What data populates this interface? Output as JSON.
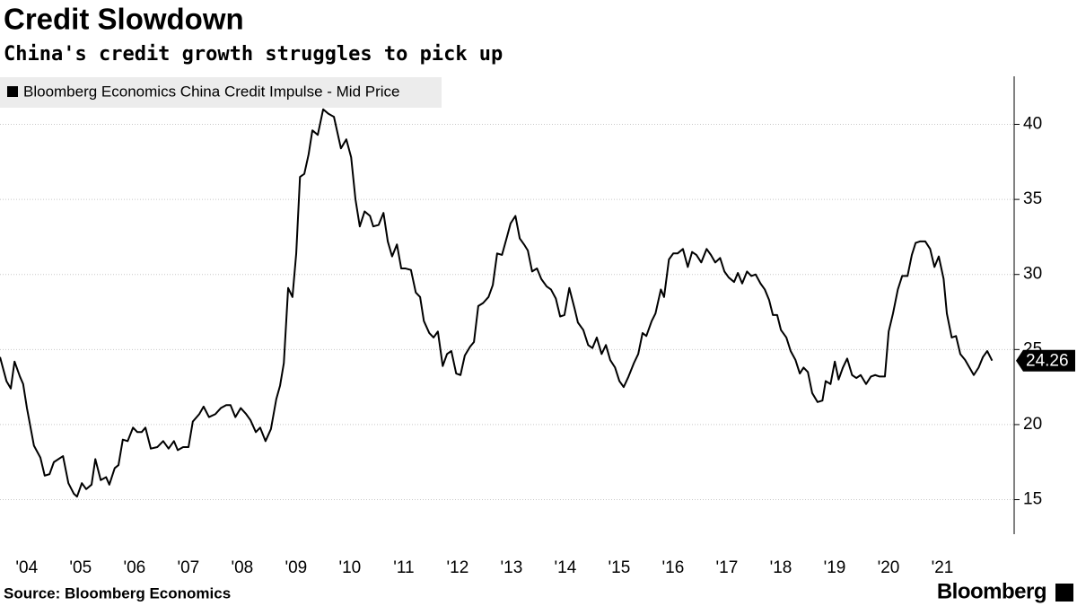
{
  "chart_data": {
    "type": "line",
    "title": "Credit Slowdown",
    "subtitle": "China's credit growth struggles to pick up",
    "source": "Source: Bloomberg Economics",
    "brand": "Bloomberg",
    "legend": "top-left",
    "grid": true,
    "x": [
      2003.67,
      2003.79,
      2003.87,
      2003.94,
      2004.04,
      2004.1,
      2004.17,
      2004.3,
      2004.42,
      2004.5,
      2004.59,
      2004.67,
      2004.84,
      2004.94,
      2005.04,
      2005.1,
      2005.19,
      2005.27,
      2005.37,
      2005.44,
      2005.54,
      2005.64,
      2005.7,
      2005.8,
      2005.87,
      2005.95,
      2006.04,
      2006.14,
      2006.22,
      2006.3,
      2006.37,
      2006.47,
      2006.59,
      2006.7,
      2006.8,
      2006.9,
      2006.97,
      2007.07,
      2007.17,
      2007.25,
      2007.37,
      2007.45,
      2007.55,
      2007.67,
      2007.77,
      2007.87,
      2007.95,
      2008.04,
      2008.14,
      2008.24,
      2008.32,
      2008.42,
      2008.5,
      2008.6,
      2008.7,
      2008.8,
      2008.87,
      2008.94,
      2009.02,
      2009.1,
      2009.17,
      2009.24,
      2009.32,
      2009.4,
      2009.47,
      2009.57,
      2009.67,
      2009.77,
      2009.87,
      2010.0,
      2010.1,
      2010.19,
      2010.27,
      2010.35,
      2010.44,
      2010.54,
      2010.6,
      2010.7,
      2010.79,
      2010.87,
      2010.95,
      2011.04,
      2011.12,
      2011.2,
      2011.3,
      2011.39,
      2011.47,
      2011.54,
      2011.64,
      2011.72,
      2011.8,
      2011.89,
      2011.97,
      2012.05,
      2012.14,
      2012.22,
      2012.3,
      2012.4,
      2012.47,
      2012.55,
      2012.64,
      2012.74,
      2012.82,
      2012.9,
      2012.99,
      2013.09,
      2013.15,
      2013.24,
      2013.32,
      2013.4,
      2013.47,
      2013.55,
      2013.64,
      2013.72,
      2013.82,
      2013.9,
      2013.99,
      2014.07,
      2014.15,
      2014.24,
      2014.34,
      2014.4,
      2014.5,
      2014.59,
      2014.67,
      2014.75,
      2014.84,
      2014.92,
      2015.0,
      2015.09,
      2015.17,
      2015.25,
      2015.34,
      2015.44,
      2015.52,
      2015.6,
      2015.67,
      2015.77,
      2015.84,
      2015.94,
      2016.0,
      2016.09,
      2016.17,
      2016.25,
      2016.35,
      2016.44,
      2016.52,
      2016.6,
      2016.69,
      2016.79,
      2016.87,
      2016.95,
      2017.04,
      2017.12,
      2017.2,
      2017.3,
      2017.37,
      2017.45,
      2017.54,
      2017.62,
      2017.7,
      2017.79,
      2017.87,
      2017.95,
      2018.02,
      2018.1,
      2018.17,
      2018.27,
      2018.35,
      2018.44,
      2018.52,
      2018.59,
      2018.67,
      2018.75,
      2018.85,
      2018.94,
      2019.0,
      2019.09,
      2019.17,
      2019.24,
      2019.32,
      2019.4,
      2019.49,
      2019.57,
      2019.65,
      2019.75,
      2019.84,
      2019.92,
      2020.0,
      2020.1,
      2020.17,
      2020.25,
      2020.34,
      2020.42,
      2020.52,
      2020.6,
      2020.67,
      2020.75,
      2020.85,
      2020.94,
      2021.02,
      2021.1,
      2021.19,
      2021.25,
      2021.34,
      2021.42,
      2021.5,
      2021.59,
      2021.67,
      2021.75,
      2021.84,
      2021.92,
      2022.0,
      2022.09
    ],
    "series": [
      {
        "name": "Bloomberg Economics China Credit Impulse - Mid Price",
        "color": "#000000",
        "values": [
          24.5,
          22.9,
          22.4,
          24.2,
          23.2,
          22.7,
          21.1,
          18.6,
          17.8,
          16.6,
          16.7,
          17.5,
          17.9,
          16.1,
          15.4,
          15.2,
          16.1,
          15.7,
          16.0,
          17.7,
          16.3,
          16.5,
          16.0,
          17.1,
          17.3,
          19.0,
          18.9,
          19.8,
          19.5,
          19.5,
          19.8,
          18.4,
          18.5,
          18.9,
          18.4,
          18.9,
          18.3,
          18.5,
          18.5,
          20.2,
          20.7,
          21.2,
          20.5,
          20.7,
          21.1,
          21.3,
          21.3,
          20.5,
          21.1,
          20.7,
          20.3,
          19.5,
          19.8,
          18.9,
          19.7,
          21.7,
          22.6,
          24.1,
          29.1,
          28.5,
          31.4,
          36.5,
          36.7,
          38.0,
          39.6,
          39.3,
          41.0,
          40.7,
          40.5,
          38.4,
          39.0,
          37.8,
          35.0,
          33.2,
          34.2,
          33.9,
          33.2,
          33.3,
          34.1,
          32.2,
          31.2,
          32.0,
          30.4,
          30.4,
          30.3,
          28.8,
          28.5,
          26.9,
          26.1,
          25.8,
          26.2,
          23.9,
          24.7,
          24.9,
          23.4,
          23.3,
          24.6,
          25.2,
          25.5,
          27.9,
          28.1,
          28.5,
          29.3,
          31.4,
          31.3,
          32.6,
          33.4,
          33.9,
          32.4,
          32.0,
          31.6,
          30.2,
          30.4,
          29.7,
          29.2,
          29.0,
          28.4,
          27.2,
          27.3,
          29.1,
          27.7,
          26.8,
          26.3,
          25.3,
          25.1,
          25.8,
          24.7,
          25.3,
          24.3,
          23.8,
          22.9,
          22.5,
          23.2,
          24.1,
          24.7,
          26.1,
          25.9,
          26.9,
          27.4,
          29.0,
          28.5,
          31.0,
          31.4,
          31.4,
          31.7,
          30.5,
          31.5,
          31.3,
          30.8,
          31.7,
          31.3,
          30.8,
          31.1,
          30.2,
          29.8,
          29.5,
          30.1,
          29.4,
          30.2,
          29.9,
          30.0,
          29.4,
          29.0,
          28.3,
          27.3,
          27.3,
          26.3,
          25.8,
          24.9,
          24.3,
          23.4,
          23.8,
          23.5,
          22.1,
          21.5,
          21.6,
          22.9,
          22.7,
          24.2,
          23.0,
          23.8,
          24.4,
          23.3,
          23.1,
          23.3,
          22.7,
          23.2,
          23.3,
          23.2,
          23.2,
          26.2,
          27.4,
          29.0,
          29.9,
          29.9,
          31.3,
          32.1,
          32.2,
          32.2,
          31.7,
          30.5,
          31.2,
          29.7,
          27.4,
          25.8,
          25.9,
          24.7,
          24.3,
          23.8,
          23.3,
          23.8,
          24.5,
          24.9,
          24.26
        ]
      }
    ],
    "xlim": [
      2003.67,
      2022.5
    ],
    "xticks": [
      {
        "value": 2004,
        "label": "'04"
      },
      {
        "value": 2005,
        "label": "'05"
      },
      {
        "value": 2006,
        "label": "'06"
      },
      {
        "value": 2007,
        "label": "'07"
      },
      {
        "value": 2008,
        "label": "'08"
      },
      {
        "value": 2009,
        "label": "'09"
      },
      {
        "value": 2010,
        "label": "'10"
      },
      {
        "value": 2011,
        "label": "'11"
      },
      {
        "value": 2012,
        "label": "'12"
      },
      {
        "value": 2013,
        "label": "'13"
      },
      {
        "value": 2014,
        "label": "'14"
      },
      {
        "value": 2015,
        "label": "'15"
      },
      {
        "value": 2016,
        "label": "'16"
      },
      {
        "value": 2017,
        "label": "'17"
      },
      {
        "value": 2018,
        "label": "'18"
      },
      {
        "value": 2019,
        "label": "'19"
      },
      {
        "value": 2020,
        "label": "'20"
      },
      {
        "value": 2021,
        "label": "'21"
      }
    ],
    "ylim": [
      12.7,
      43.2
    ],
    "yticks": [
      15,
      20,
      25,
      30,
      35,
      40
    ]
  }
}
